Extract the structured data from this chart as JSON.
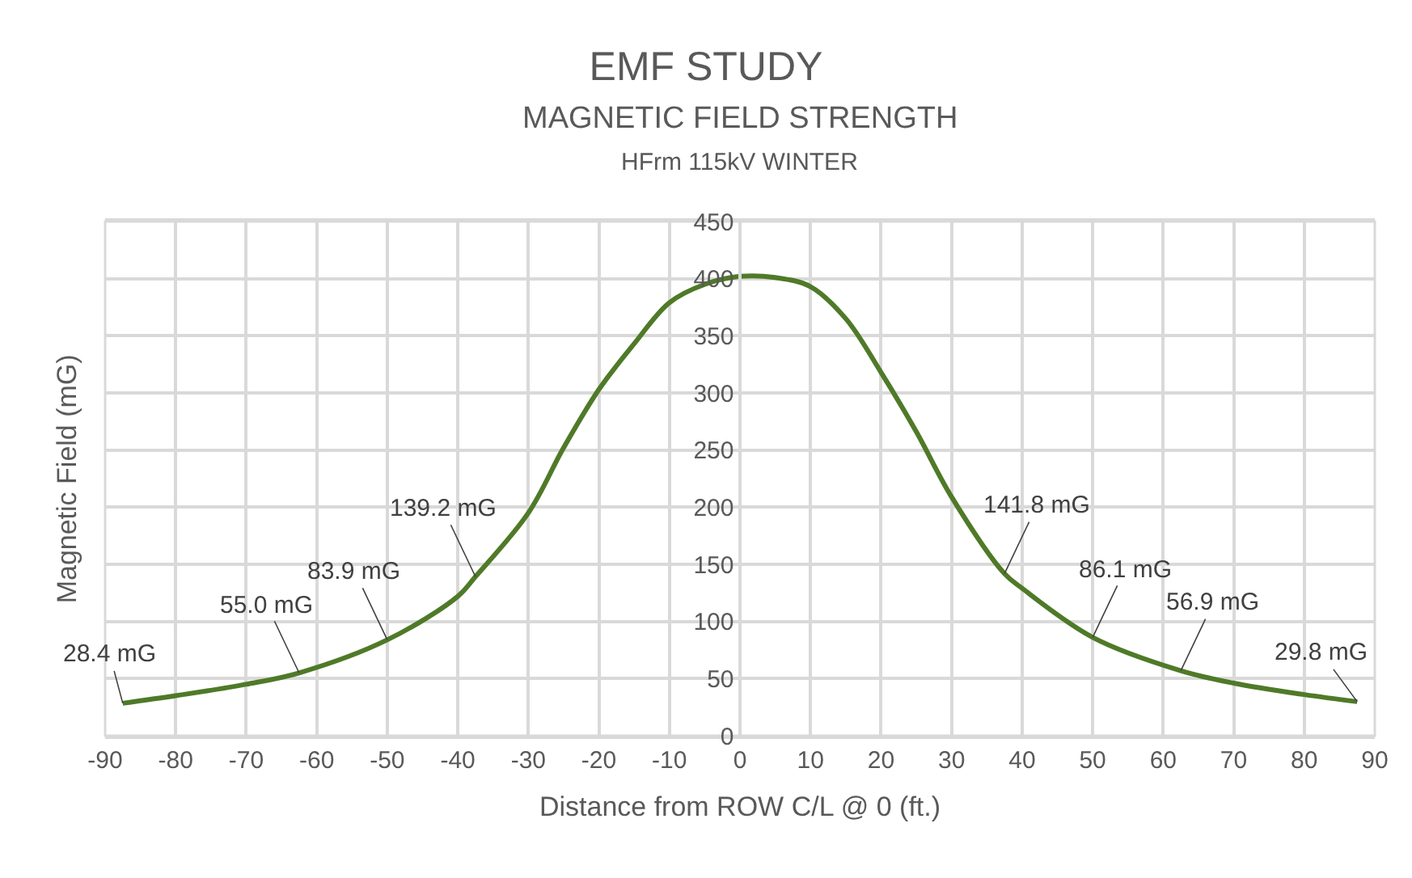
{
  "chart_data": {
    "type": "line",
    "title": "EMF STUDY",
    "subtitle": "MAGNETIC FIELD STRENGTH\nHFrm 115kV WINTER",
    "xlabel": "Distance from ROW C/L @ 0 (ft.)",
    "ylabel": "Magnetic Field (mG)",
    "x": [
      -87.5,
      -80,
      -70,
      -62.5,
      -50,
      -40,
      -37.5,
      -30,
      -25,
      -20,
      -15,
      -10,
      -5,
      0,
      5,
      10,
      15,
      20,
      25,
      30,
      37.5,
      40,
      50,
      62.5,
      70,
      80,
      87.5
    ],
    "series": [
      {
        "color": "#4f7a28",
        "values": [
          28.4,
          35,
          45,
          55.0,
          83.9,
          122,
          139.2,
          195,
          252,
          303,
          343,
          379,
          395,
          402,
          401,
          393,
          365,
          318,
          266,
          209,
          141.8,
          129,
          86.1,
          56.9,
          46,
          36,
          29.8
        ]
      }
    ],
    "xlim": [
      -90,
      90
    ],
    "xticks": [
      -90,
      -80,
      -70,
      -60,
      -50,
      -40,
      -30,
      -20,
      -10,
      0,
      10,
      20,
      30,
      40,
      50,
      60,
      70,
      80,
      90
    ],
    "ylim": [
      0,
      450
    ],
    "yticks": [
      0,
      50,
      100,
      150,
      200,
      250,
      300,
      350,
      400,
      450
    ],
    "grid": true,
    "legend": false,
    "marker": "none",
    "line_style": "solid",
    "annotations": [
      {
        "text": "28.4 mG",
        "x": -87.5,
        "y": 28.4
      },
      {
        "text": "55.0 mG",
        "x": -62.5,
        "y": 55.0
      },
      {
        "text": "83.9 mG",
        "x": -50,
        "y": 83.9
      },
      {
        "text": "139.2 mG",
        "x": -37.5,
        "y": 139.2
      },
      {
        "text": "141.8 mG",
        "x": 37.5,
        "y": 141.8
      },
      {
        "text": "86.1 mG",
        "x": 50,
        "y": 86.1
      },
      {
        "text": "56.9 mG",
        "x": 62.5,
        "y": 56.9
      },
      {
        "text": "29.8 mG",
        "x": 87.5,
        "y": 29.8
      }
    ]
  }
}
